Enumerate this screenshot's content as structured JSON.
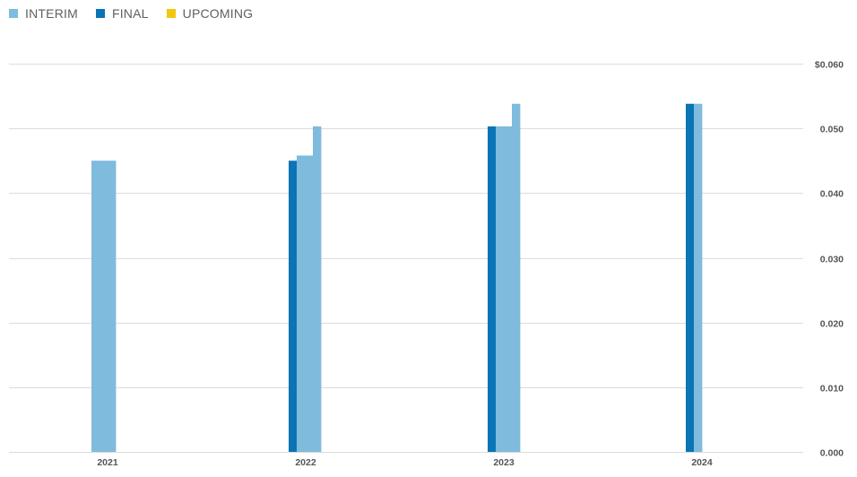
{
  "legend": {
    "items": [
      {
        "label": "INTERIM",
        "color": "#7fbbdc"
      },
      {
        "label": "FINAL",
        "color": "#0a74b5"
      },
      {
        "label": "UPCOMING",
        "color": "#f2c511"
      }
    ]
  },
  "chart_data": {
    "type": "bar",
    "title": "",
    "xlabel": "",
    "ylabel": "",
    "ylim": [
      0,
      0.06
    ],
    "y_ticks": [
      {
        "value": 0.06,
        "label": "$0.060"
      },
      {
        "value": 0.05,
        "label": "0.050"
      },
      {
        "value": 0.04,
        "label": "0.040"
      },
      {
        "value": 0.03,
        "label": "0.030"
      },
      {
        "value": 0.02,
        "label": "0.020"
      },
      {
        "value": 0.01,
        "label": "0.010"
      },
      {
        "value": 0.0,
        "label": "0.000"
      }
    ],
    "y_axis_position": "right",
    "grid": true,
    "legend_position": "top-left",
    "categories": [
      "2021",
      "2022",
      "2023",
      "2024"
    ],
    "groups": [
      {
        "year": "2021",
        "bars": [
          {
            "series": "INTERIM",
            "value": 0.045
          },
          {
            "series": "INTERIM",
            "value": 0.045
          },
          {
            "series": "INTERIM",
            "value": 0.045
          }
        ]
      },
      {
        "year": "2022",
        "bars": [
          {
            "series": "FINAL",
            "value": 0.045
          },
          {
            "series": "INTERIM",
            "value": 0.0458
          },
          {
            "series": "INTERIM",
            "value": 0.0458
          },
          {
            "series": "INTERIM",
            "value": 0.0503
          }
        ]
      },
      {
        "year": "2023",
        "bars": [
          {
            "series": "FINAL",
            "value": 0.0503
          },
          {
            "series": "INTERIM",
            "value": 0.0503
          },
          {
            "series": "INTERIM",
            "value": 0.0503
          },
          {
            "series": "INTERIM",
            "value": 0.0538
          }
        ]
      },
      {
        "year": "2024",
        "bars": [
          {
            "series": "FINAL",
            "value": 0.0538
          },
          {
            "series": "INTERIM",
            "value": 0.0538
          }
        ]
      }
    ]
  }
}
